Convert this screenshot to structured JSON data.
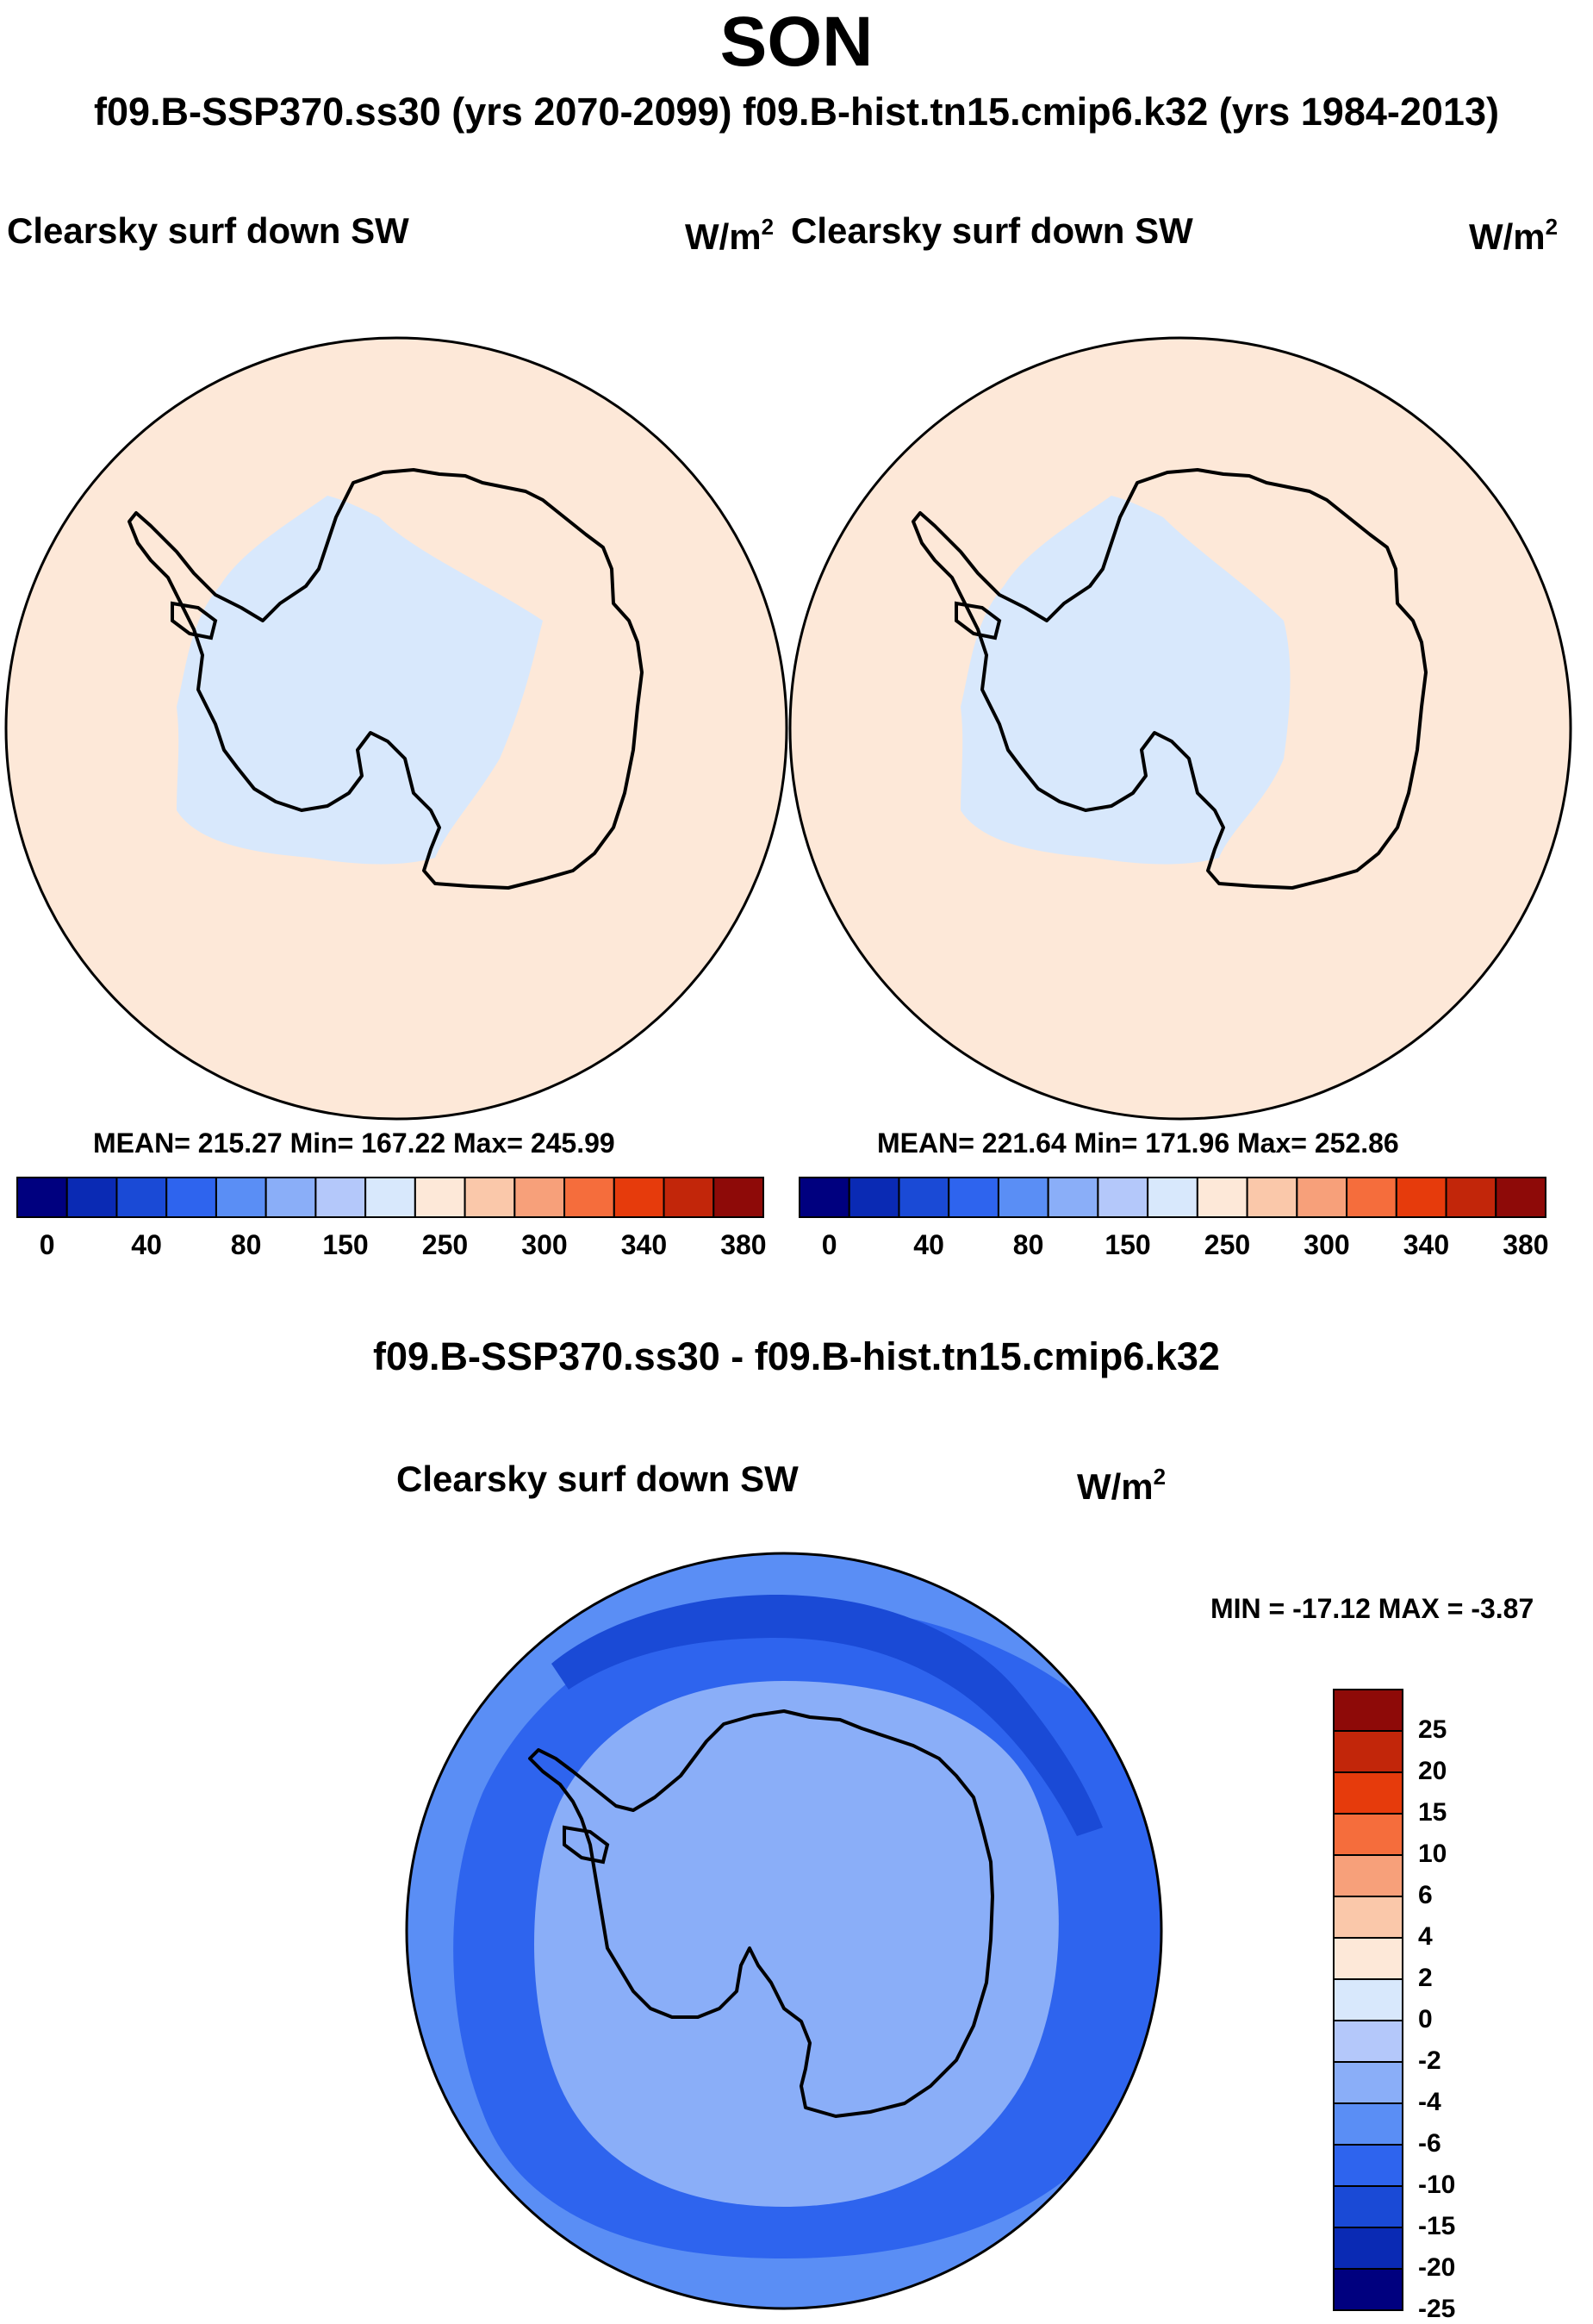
{
  "title": "SON",
  "subtitle": "f09.B-SSP370.ss30 (yrs 2070-2099)  f09.B-hist.tn15.cmip6.k32 (yrs 1984-2013)",
  "panels": [
    {
      "variable": "Clearsky surf down SW",
      "unit_base": "W/m",
      "unit_exp": "2",
      "stats": "MEAN= 215.27  Min= 167.22  Max= 245.99"
    },
    {
      "variable": "Clearsky surf down SW",
      "unit_base": "W/m",
      "unit_exp": "2",
      "stats": "MEAN= 221.64  Min= 171.96  Max= 252.86"
    }
  ],
  "colorbar": {
    "colors": [
      "#00007f",
      "#0a2ab4",
      "#1a4ad6",
      "#2e64ee",
      "#5a8ef5",
      "#8aaef8",
      "#b4c8fa",
      "#d8e8fc",
      "#fde8d8",
      "#fac8aa",
      "#f7a07a",
      "#f56d3c",
      "#e63b0c",
      "#c2260a",
      "#8e0a08"
    ],
    "tick_labels": [
      "0",
      "40",
      "80",
      "150",
      "250",
      "300",
      "340",
      "380"
    ]
  },
  "difference": {
    "title": "f09.B-SSP370.ss30 - f09.B-hist.tn15.cmip6.k32",
    "variable": "Clearsky surf down SW",
    "unit_base": "W/m",
    "unit_exp": "2",
    "minmax": "MIN = -17.12 MAX =  -3.87",
    "colorbar": {
      "colors_top_to_bottom": [
        "#8e0a08",
        "#c2260a",
        "#e63b0c",
        "#f56d3c",
        "#f7a07a",
        "#fac8aa",
        "#fde8d8",
        "#d8e8fc",
        "#b4c8fa",
        "#8aaef8",
        "#5a8ef5",
        "#2e64ee",
        "#1a4ad6",
        "#0a2ab4",
        "#00007f"
      ],
      "tick_labels": [
        "25",
        "20",
        "15",
        "10",
        "6",
        "4",
        "2",
        "0",
        "-2",
        "-4",
        "-6",
        "-10",
        "-15",
        "-20",
        "-25"
      ]
    }
  },
  "map_colors": {
    "warm_light": "#fde8d8",
    "warm_med": "#fad4bc",
    "cool_light": "#d8e8fc",
    "diff_light": "#b4c8fa",
    "diff_med": "#8aaef8",
    "diff_blue": "#5a8ef5",
    "diff_strong": "#2e64ee",
    "diff_dark": "#1a4ad6"
  }
}
